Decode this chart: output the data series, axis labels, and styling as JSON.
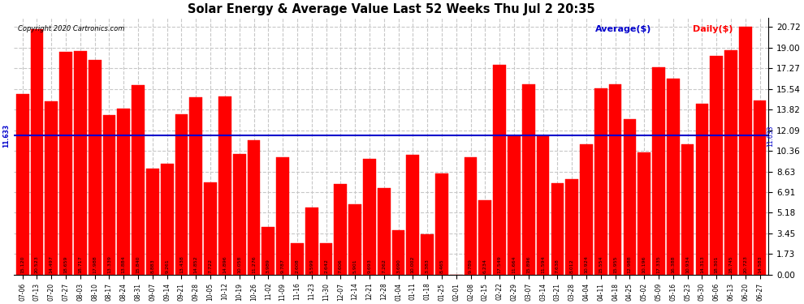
{
  "title": "Solar Energy & Average Value Last 52 Weeks Thu Jul 2 20:35",
  "copyright": "Copyright 2020 Cartronics.com",
  "average_label": "Average($)",
  "daily_label": "Daily($)",
  "average_value": 11.633,
  "bar_values": [
    15.12,
    20.523,
    14.497,
    18.659,
    18.717,
    17.988,
    13.339,
    13.884,
    15.84,
    8.883,
    9.261,
    13.438,
    14.852,
    7.722,
    14.896,
    10.058,
    11.276,
    3.989,
    9.787,
    2.608,
    5.599,
    2.642,
    7.606,
    5.901,
    9.693,
    7.262,
    3.69,
    10.002,
    3.383,
    8.465,
    0.008,
    9.789,
    6.234,
    17.549,
    11.664,
    15.896,
    11.594,
    7.638,
    8.012,
    10.924,
    15.554,
    15.955,
    12.988,
    10.196,
    17.335,
    16.388,
    10.934,
    14.313,
    18.301,
    18.745,
    20.723,
    14.583
  ],
  "bar_dates": [
    "07-06",
    "07-13",
    "07-20",
    "07-27",
    "08-03",
    "08-10",
    "08-17",
    "08-24",
    "08-31",
    "09-07",
    "09-14",
    "09-21",
    "09-28",
    "10-05",
    "10-12",
    "10-19",
    "10-26",
    "11-02",
    "11-09",
    "11-16",
    "11-23",
    "11-30",
    "12-07",
    "12-14",
    "12-21",
    "12-28",
    "01-04",
    "01-11",
    "01-18",
    "01-25",
    "02-01",
    "02-08",
    "02-15",
    "02-22",
    "02-29",
    "03-07",
    "03-14",
    "03-21",
    "03-28",
    "04-04",
    "04-11",
    "04-18",
    "04-25",
    "05-02",
    "05-09",
    "05-16",
    "05-23",
    "05-30",
    "06-06",
    "06-13",
    "06-20",
    "06-27"
  ],
  "bar_color": "#ff0000",
  "average_line_color": "#0000cc",
  "background_color": "#ffffff",
  "grid_color": "#c8c8c8",
  "yticks": [
    0.0,
    1.73,
    3.45,
    5.18,
    6.91,
    8.63,
    10.36,
    12.09,
    13.82,
    15.54,
    17.27,
    19.0,
    20.72
  ],
  "ymax": 21.5,
  "annotation_value": "11.633"
}
